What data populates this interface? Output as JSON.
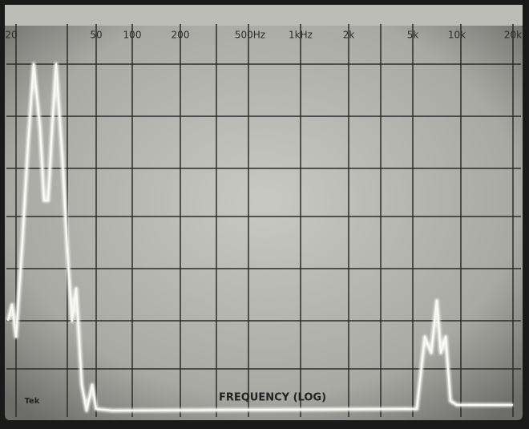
{
  "screen": {
    "scale_labels": [
      "20",
      "50",
      "100",
      "200",
      "500Hz",
      "1kHz",
      "2k",
      "5k",
      "10k",
      "20k"
    ],
    "axis_caption": "FREQUENCY (LOG)",
    "brand": "Tek"
  }
}
